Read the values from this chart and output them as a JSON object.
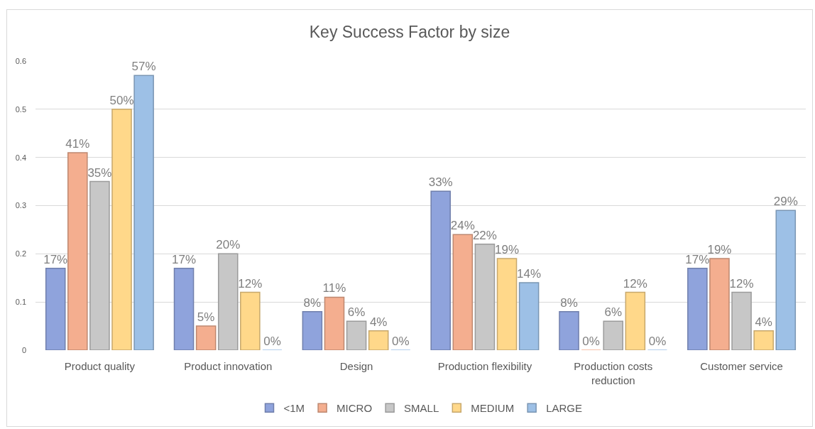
{
  "chart_data": {
    "type": "bar",
    "title": "Key Success Factor by size",
    "categories": [
      "Product quality",
      "Product innovation",
      "Design",
      "Production flexibility",
      "Production costs reduction",
      "Customer service"
    ],
    "series": [
      {
        "name": "<1M",
        "color": "#8fa3dc",
        "values": [
          0.17,
          0.17,
          0.08,
          0.33,
          0.08,
          0.17
        ],
        "value_labels": [
          "17%",
          "17%",
          "8%",
          "33%",
          "8%",
          "17%"
        ]
      },
      {
        "name": "MICRO",
        "color": "#f4ae8f",
        "values": [
          0.41,
          0.05,
          0.11,
          0.24,
          0,
          0.19
        ],
        "value_labels": [
          "41%",
          "5%",
          "11%",
          "24%",
          "0%",
          "19%"
        ]
      },
      {
        "name": "SMALL",
        "color": "#c7c7c7",
        "values": [
          0.35,
          0.2,
          0.06,
          0.22,
          0.06,
          0.12
        ],
        "value_labels": [
          "35%",
          "20%",
          "6%",
          "22%",
          "6%",
          "12%"
        ]
      },
      {
        "name": "MEDIUM",
        "color": "#ffd88a",
        "values": [
          0.5,
          0.12,
          0.04,
          0.19,
          0.12,
          0.04
        ],
        "value_labels": [
          "50%",
          "12%",
          "4%",
          "19%",
          "12%",
          "4%"
        ]
      },
      {
        "name": "LARGE",
        "color": "#9dc0e6",
        "values": [
          0.57,
          0,
          0,
          0.14,
          0,
          0.29
        ],
        "value_labels": [
          "57%",
          "0%",
          "0%",
          "14%",
          "0%",
          "29%"
        ]
      }
    ],
    "ylim": [
      0,
      0.6
    ],
    "yticks": [
      0,
      0.1,
      0.2,
      0.3,
      0.4,
      0.5,
      0.6
    ],
    "grid": "y",
    "legend": "bottom"
  }
}
